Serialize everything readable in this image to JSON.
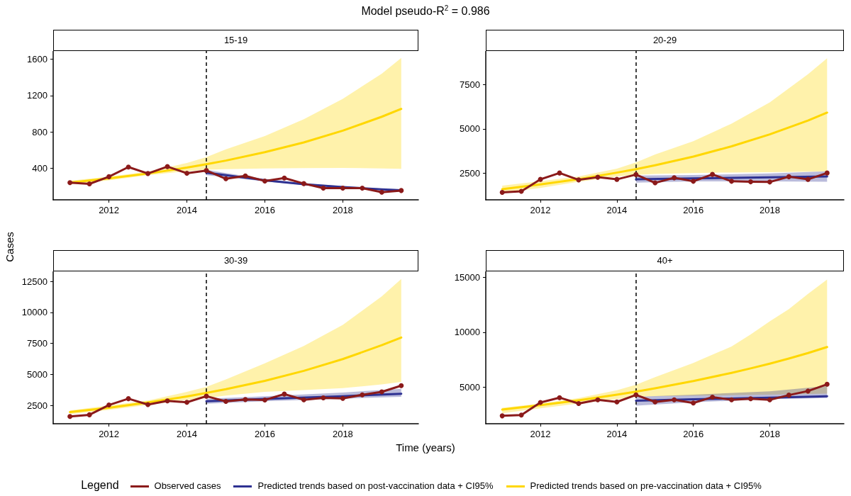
{
  "chart_data": [
    {
      "type": "line",
      "title": "15-19",
      "annotations": [
        "Model pseudo-R$^{2}$ = 0.986"
      ],
      "ylabel": "Cases",
      "legend": "bottom",
      "legend_title": "Legend",
      "grid": false,
      "xlim": [
        2010.57,
        2019.94
      ],
      "xticks": [
        2012,
        2014,
        2016,
        2018
      ],
      "ylim": [
        55,
        1690
      ],
      "yticks": [
        400,
        800,
        1200,
        1600
      ],
      "ref_lines": [
        {
          "axis": "x",
          "value": 2014.5,
          "line_style": "dashed",
          "color": "#000000"
        }
      ],
      "series": [
        {
          "name": "Predicted trends based on pre-vaccination data + CI95%",
          "color": "#ffd700",
          "marker": "none",
          "x": [
            2011,
            2012,
            2013,
            2014,
            2014.5,
            2015,
            2016,
            2017,
            2018,
            2019,
            2019.5
          ],
          "values": [
            244,
            290,
            344,
            409,
            447,
            486,
            578,
            686,
            815,
            968,
            1054
          ],
          "lower": [
            225,
            270,
            325,
            370,
            385,
            392,
            400,
            403,
            405,
            400,
            395
          ],
          "upper": [
            265,
            310,
            365,
            460,
            525,
            610,
            755,
            940,
            1165,
            1440,
            1615
          ]
        },
        {
          "name": "Predicted trends based on post-vaccination data + CI95%",
          "color": "#2e3192",
          "marker": "none",
          "x": [
            2014.5,
            2015,
            2016,
            2017,
            2018,
            2019,
            2019.5
          ],
          "values": [
            353,
            325,
            270,
            226,
            195,
            170,
            160
          ],
          "lower": [
            325,
            305,
            258,
            218,
            187,
            162,
            150
          ],
          "upper": [
            385,
            348,
            284,
            236,
            204,
            178,
            170
          ]
        },
        {
          "name": "Observed cases",
          "color": "#8b1a1a",
          "marker": "circle",
          "x": [
            2011,
            2011.5,
            2012,
            2012.5,
            2013,
            2013.5,
            2014,
            2014.5,
            2015,
            2015.5,
            2016,
            2016.5,
            2017,
            2017.5,
            2018,
            2018.5,
            2019,
            2019.5
          ],
          "values": [
            244,
            230,
            309,
            415,
            344,
            420,
            347,
            377,
            286,
            318,
            262,
            294,
            233,
            183,
            183,
            183,
            139,
            157
          ]
        }
      ]
    },
    {
      "type": "line",
      "title": "20-29",
      "grid": false,
      "xlim": [
        2010.57,
        2019.94
      ],
      "xticks": [
        2012,
        2014,
        2016,
        2018
      ],
      "ylim": [
        980,
        9410
      ],
      "yticks": [
        2500,
        5000,
        7500
      ],
      "ref_lines": [
        {
          "axis": "x",
          "value": 2014.5,
          "line_style": "dashed",
          "color": "#000000"
        }
      ],
      "series": [
        {
          "color": "#ffd700",
          "marker": "none",
          "x": [
            2011,
            2012,
            2013,
            2014,
            2014.5,
            2015,
            2016,
            2017,
            2018,
            2019,
            2019.5
          ],
          "values": [
            1580,
            1850,
            2150,
            2520,
            2720,
            2940,
            3430,
            4010,
            4690,
            5470,
            5920
          ],
          "lower": [
            1380,
            1650,
            2000,
            2300,
            2400,
            2450,
            2500,
            2530,
            2550,
            2580,
            2600
          ],
          "upper": [
            1780,
            2030,
            2300,
            2750,
            3100,
            3550,
            4300,
            5300,
            6500,
            8100,
            9000
          ]
        },
        {
          "color": "#2e3192",
          "marker": "none",
          "x": [
            2014.5,
            2016,
            2018,
            2019.5
          ],
          "values": [
            2140,
            2190,
            2250,
            2300
          ],
          "lower": [
            1950,
            2020,
            2020,
            2000
          ],
          "upper": [
            2350,
            2380,
            2480,
            2600
          ]
        },
        {
          "color": "#8b1a1a",
          "marker": "circle",
          "x": [
            2011,
            2011.5,
            2012,
            2012.5,
            2013,
            2013.5,
            2014,
            2014.5,
            2015,
            2015.5,
            2016,
            2016.5,
            2017,
            2017.5,
            2018,
            2018.5,
            2019,
            2019.5
          ],
          "values": [
            1400,
            1460,
            2140,
            2500,
            2110,
            2260,
            2140,
            2410,
            1940,
            2230,
            2030,
            2420,
            2030,
            2000,
            1990,
            2290,
            2140,
            2500
          ]
        }
      ]
    },
    {
      "type": "line",
      "title": "30-39",
      "xlabel": "Time (years)",
      "grid": false,
      "xlim": [
        2010.57,
        2019.94
      ],
      "xticks": [
        2012,
        2014,
        2016,
        2018
      ],
      "ylim": [
        1030,
        13310
      ],
      "yticks": [
        2500,
        5000,
        7500,
        10000,
        12500
      ],
      "ref_lines": [
        {
          "axis": "x",
          "value": 2014.5,
          "line_style": "dashed",
          "color": "#000000"
        }
      ],
      "series": [
        {
          "color": "#ffd700",
          "marker": "none",
          "x": [
            2011,
            2012,
            2013,
            2014,
            2014.5,
            2015,
            2016,
            2017,
            2018,
            2019,
            2019.5
          ],
          "values": [
            1970,
            2320,
            2740,
            3230,
            3510,
            3810,
            4490,
            5290,
            6240,
            7360,
            7980
          ],
          "lower": [
            1800,
            2150,
            2550,
            2950,
            3100,
            3300,
            3600,
            3750,
            3900,
            4200,
            4400
          ],
          "upper": [
            2100,
            2500,
            2900,
            3600,
            4000,
            4600,
            5900,
            7300,
            9000,
            11300,
            12700
          ]
        },
        {
          "color": "#2e3192",
          "marker": "none",
          "x": [
            2014.5,
            2016,
            2018,
            2019.5
          ],
          "values": [
            2850,
            3030,
            3250,
            3450
          ],
          "lower": [
            2650,
            2850,
            3050,
            3200
          ],
          "upper": [
            3050,
            3250,
            3550,
            3850
          ]
        },
        {
          "color": "#8b1a1a",
          "marker": "circle",
          "x": [
            2011,
            2011.5,
            2012,
            2012.5,
            2013,
            2013.5,
            2014,
            2014.5,
            2015,
            2015.5,
            2016,
            2016.5,
            2017,
            2017.5,
            2018,
            2018.5,
            2019,
            2019.5
          ],
          "values": [
            1620,
            1750,
            2540,
            3050,
            2570,
            2870,
            2760,
            3250,
            2830,
            2980,
            2940,
            3420,
            2960,
            3110,
            3070,
            3360,
            3600,
            4100
          ]
        }
      ]
    },
    {
      "type": "line",
      "title": "40+",
      "grid": false,
      "xlim": [
        2010.57,
        2019.94
      ],
      "xticks": [
        2012,
        2014,
        2016,
        2018
      ],
      "ylim": [
        1650,
        15550
      ],
      "yticks": [
        5000,
        10000,
        15000
      ],
      "ref_lines": [
        {
          "axis": "x",
          "value": 2014.5,
          "line_style": "dashed",
          "color": "#000000"
        }
      ],
      "series": [
        {
          "color": "#ffd700",
          "marker": "none",
          "x": [
            2011,
            2012,
            2013,
            2014,
            2014.5,
            2015,
            2016,
            2017,
            2017.5,
            2018,
            2018.5,
            2019,
            2019.5
          ],
          "values": [
            2940,
            3340,
            3790,
            4300,
            4580,
            4880,
            5540,
            6290,
            6700,
            7130,
            7600,
            8100,
            8650
          ],
          "lower": [
            2600,
            3050,
            3500,
            3900,
            4100,
            4150,
            4200,
            4250,
            4280,
            4300,
            4330,
            4370,
            4400
          ],
          "upper": [
            3100,
            3500,
            4000,
            4700,
            5200,
            5900,
            7200,
            8700,
            9800,
            11000,
            12100,
            13500,
            14800
          ]
        },
        {
          "color": "#2e3192",
          "marker": "none",
          "x": [
            2014.5,
            2016,
            2018,
            2019.5
          ],
          "values": [
            3750,
            3880,
            4020,
            4150
          ],
          "lower": [
            3300,
            3600,
            3900,
            4000
          ],
          "upper": [
            4100,
            4300,
            4600,
            5100
          ]
        },
        {
          "color": "#8b1a1a",
          "marker": "circle",
          "x": [
            2011,
            2011.5,
            2012,
            2012.5,
            2013,
            2013.5,
            2014,
            2014.5,
            2015,
            2015.5,
            2016,
            2016.5,
            2017,
            2017.5,
            2018,
            2018.5,
            2019,
            2019.5
          ],
          "values": [
            2370,
            2440,
            3590,
            4030,
            3490,
            3830,
            3640,
            4280,
            3640,
            3830,
            3540,
            4080,
            3830,
            3930,
            3830,
            4260,
            4630,
            5250
          ]
        }
      ]
    }
  ]
}
